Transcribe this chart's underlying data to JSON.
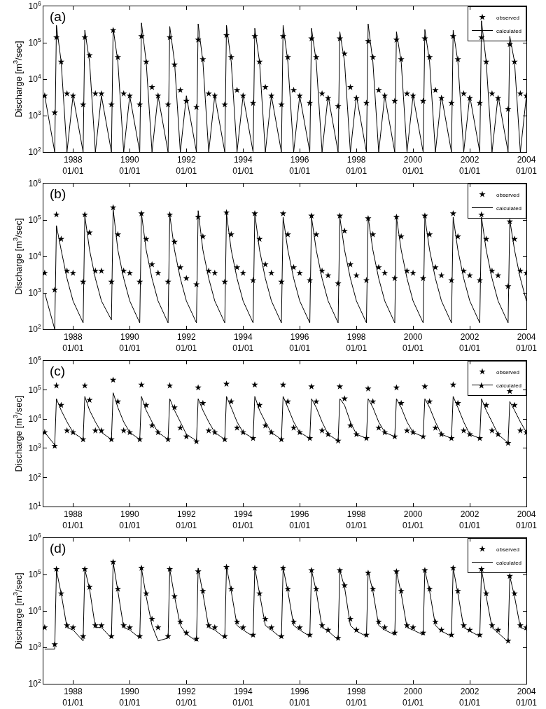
{
  "chart_data": [
    {
      "type": "line",
      "annotations": [
        "(a)"
      ],
      "ylabel": "Discharge [m$^{3}$/sec]",
      "log": "y",
      "grid": false,
      "legend": "top right",
      "xlim": [
        "1986-12-15",
        "2004-01-01"
      ],
      "xticks": [
        {
          "value": "1988-01-01",
          "label": "1988\n01/01"
        },
        {
          "value": "1990-01-01",
          "label": "1990\n01/01"
        },
        {
          "value": "1992-01-01",
          "label": "1992\n01/01"
        },
        {
          "value": "1994-01-01",
          "label": "1994\n01/01"
        },
        {
          "value": "1996-01-01",
          "label": "1996\n01/01"
        },
        {
          "value": "1998-01-01",
          "label": "1998\n01/01"
        },
        {
          "value": "2000-01-01",
          "label": "2000\n01/01"
        },
        {
          "value": "2002-01-01",
          "label": "2002\n01/01"
        },
        {
          "value": "2004-01-01",
          "label": "2004\n01/01"
        }
      ],
      "ylim": [
        100,
        1000000
      ],
      "yticks": [
        {
          "value": 100,
          "label": "10$^{2}$"
        },
        {
          "value": 1000,
          "label": "10$^{3}$"
        },
        {
          "value": 10000,
          "label": "10$^{4}$"
        },
        {
          "value": 100000,
          "label": "10$^{5}$"
        },
        {
          "value": 1000000,
          "label": "10$^{6}$"
        }
      ],
      "x": [
        "1987-01-01",
        "1987-05-10",
        "1987-06-01",
        "1987-08-01",
        "1987-10-15",
        "1988-01-01",
        "1988-05-10",
        "1988-06-01",
        "1988-08-01",
        "1988-10-15",
        "1989-01-01",
        "1989-05-10",
        "1989-06-01",
        "1989-08-01",
        "1989-10-15",
        "1990-01-01",
        "1990-05-10",
        "1990-06-01",
        "1990-08-01",
        "1990-10-15",
        "1991-01-01",
        "1991-05-10",
        "1991-06-01",
        "1991-08-01",
        "1991-10-15",
        "1992-01-01",
        "1992-05-10",
        "1992-06-01",
        "1992-08-01",
        "1992-10-15",
        "1993-01-01",
        "1993-05-10",
        "1993-06-01",
        "1993-08-01",
        "1993-10-15",
        "1994-01-01",
        "1994-05-10",
        "1994-06-01",
        "1994-08-01",
        "1994-10-15",
        "1995-01-01",
        "1995-05-10",
        "1995-06-01",
        "1995-08-01",
        "1995-10-15",
        "1996-01-01",
        "1996-05-10",
        "1996-06-01",
        "1996-08-01",
        "1996-10-15",
        "1997-01-01",
        "1997-05-10",
        "1997-06-01",
        "1997-08-01",
        "1997-10-15",
        "1998-01-01",
        "1998-05-10",
        "1998-06-01",
        "1998-08-01",
        "1998-10-15",
        "1999-01-01",
        "1999-05-10",
        "1999-06-01",
        "1999-08-01",
        "1999-10-15",
        "2000-01-01",
        "2000-05-10",
        "2000-06-01",
        "2000-08-01",
        "2000-10-15",
        "2001-01-01",
        "2001-05-10",
        "2001-06-01",
        "2001-08-01",
        "2001-10-15",
        "2002-01-01",
        "2002-05-10",
        "2002-06-01",
        "2002-08-01",
        "2002-10-15",
        "2003-01-01",
        "2003-05-10",
        "2003-06-01",
        "2003-08-01",
        "2003-10-15",
        "2004-01-01"
      ],
      "series": [
        {
          "name": "observed",
          "type": "scatter",
          "marker": "star",
          "color": "#000000",
          "values": [
            3500,
            1200,
            140000,
            30000,
            4000,
            3500,
            2000,
            140000,
            45000,
            4000,
            4000,
            2000,
            220000,
            40000,
            4000,
            3500,
            2000,
            150000,
            30000,
            6000,
            3500,
            2000,
            140000,
            25000,
            5000,
            2500,
            1700,
            120000,
            35000,
            4000,
            3500,
            2000,
            160000,
            40000,
            5000,
            3500,
            2200,
            150000,
            30000,
            6000,
            3500,
            2000,
            150000,
            40000,
            5000,
            3500,
            2200,
            130000,
            40000,
            4000,
            3000,
            1800,
            130000,
            50000,
            6000,
            3000,
            2200,
            110000,
            40000,
            5000,
            3500,
            2500,
            120000,
            35000,
            4000,
            3500,
            2500,
            130000,
            40000,
            5000,
            3000,
            2200,
            150000,
            35000,
            4000,
            3000,
            2200,
            140000,
            30000,
            4000,
            3000,
            1500,
            90000,
            30000,
            4000,
            3500
          ]
        },
        {
          "name": "calculated",
          "type": "line",
          "marker": "none",
          "line_style": "solid",
          "color": "#000000",
          "values": [
            3500,
            100,
            300000,
            30000,
            100,
            3500,
            100,
            220000,
            30000,
            100,
            3500,
            100,
            250000,
            30000,
            100,
            3500,
            100,
            350000,
            30000,
            100,
            3500,
            100,
            280000,
            30000,
            100,
            3500,
            100,
            330000,
            30000,
            100,
            3500,
            100,
            300000,
            30000,
            100,
            3500,
            100,
            250000,
            30000,
            100,
            3500,
            100,
            300000,
            30000,
            100,
            3500,
            100,
            250000,
            30000,
            100,
            3500,
            100,
            200000,
            30000,
            100,
            3500,
            100,
            330000,
            30000,
            100,
            3500,
            100,
            200000,
            30000,
            100,
            3500,
            100,
            230000,
            30000,
            100,
            3500,
            100,
            220000,
            30000,
            100,
            3500,
            100,
            400000,
            30000,
            100,
            3500,
            100,
            150000,
            30000,
            100,
            3500
          ]
        }
      ]
    },
    {
      "type": "line",
      "annotations": [
        "(b)"
      ],
      "ylabel": "Discharge [m$^{3}$/sec]",
      "log": "y",
      "grid": false,
      "legend": "top right",
      "xlim": [
        "1986-12-15",
        "2004-01-01"
      ],
      "xticks": [
        {
          "value": "1988-01-01",
          "label": "1988\n01/01"
        },
        {
          "value": "1990-01-01",
          "label": "1990\n01/01"
        },
        {
          "value": "1992-01-01",
          "label": "1992\n01/01"
        },
        {
          "value": "1994-01-01",
          "label": "1994\n01/01"
        },
        {
          "value": "1996-01-01",
          "label": "1996\n01/01"
        },
        {
          "value": "1998-01-01",
          "label": "1998\n01/01"
        },
        {
          "value": "2000-01-01",
          "label": "2000\n01/01"
        },
        {
          "value": "2002-01-01",
          "label": "2002\n01/01"
        },
        {
          "value": "2004-01-01",
          "label": "2004\n01/01"
        }
      ],
      "ylim": [
        100,
        1000000
      ],
      "yticks": [
        {
          "value": 100,
          "label": "10$^{2}$"
        },
        {
          "value": 1000,
          "label": "10$^{3}$"
        },
        {
          "value": 10000,
          "label": "10$^{4}$"
        },
        {
          "value": 100000,
          "label": "10$^{5}$"
        },
        {
          "value": 1000000,
          "label": "10$^{6}$"
        }
      ],
      "x": [
        "1987-01-01",
        "1987-05-10",
        "1987-06-01",
        "1987-08-01",
        "1987-10-15",
        "1988-01-01",
        "1988-05-10",
        "1988-06-01",
        "1988-08-01",
        "1988-10-15",
        "1989-01-01",
        "1989-05-10",
        "1989-06-01",
        "1989-08-01",
        "1989-10-15",
        "1990-01-01",
        "1990-05-10",
        "1990-06-01",
        "1990-08-01",
        "1990-10-15",
        "1991-01-01",
        "1991-05-10",
        "1991-06-01",
        "1991-08-01",
        "1991-10-15",
        "1992-01-01",
        "1992-05-10",
        "1992-06-01",
        "1992-08-01",
        "1992-10-15",
        "1993-01-01",
        "1993-05-10",
        "1993-06-01",
        "1993-08-01",
        "1993-10-15",
        "1994-01-01",
        "1994-05-10",
        "1994-06-01",
        "1994-08-01",
        "1994-10-15",
        "1995-01-01",
        "1995-05-10",
        "1995-06-01",
        "1995-08-01",
        "1995-10-15",
        "1996-01-01",
        "1996-05-10",
        "1996-06-01",
        "1996-08-01",
        "1996-10-15",
        "1997-01-01",
        "1997-05-10",
        "1997-06-01",
        "1997-08-01",
        "1997-10-15",
        "1998-01-01",
        "1998-05-10",
        "1998-06-01",
        "1998-08-01",
        "1998-10-15",
        "1999-01-01",
        "1999-05-10",
        "1999-06-01",
        "1999-08-01",
        "1999-10-15",
        "2000-01-01",
        "2000-05-10",
        "2000-06-01",
        "2000-08-01",
        "2000-10-15",
        "2001-01-01",
        "2001-05-10",
        "2001-06-01",
        "2001-08-01",
        "2001-10-15",
        "2002-01-01",
        "2002-05-10",
        "2002-06-01",
        "2002-08-01",
        "2002-10-15",
        "2003-01-01",
        "2003-05-10",
        "2003-06-01",
        "2003-08-01",
        "2003-10-15",
        "2004-01-01"
      ],
      "series": [
        {
          "name": "observed",
          "type": "scatter",
          "marker": "star",
          "color": "#000000",
          "values": [
            3500,
            1200,
            140000,
            30000,
            4000,
            3500,
            2000,
            140000,
            45000,
            4000,
            4000,
            2000,
            220000,
            40000,
            4000,
            3500,
            2000,
            150000,
            30000,
            6000,
            3500,
            2000,
            140000,
            25000,
            5000,
            2500,
            1700,
            120000,
            35000,
            4000,
            3500,
            2000,
            160000,
            40000,
            5000,
            3500,
            2200,
            150000,
            30000,
            6000,
            3500,
            2000,
            150000,
            40000,
            5000,
            3500,
            2200,
            130000,
            40000,
            4000,
            3000,
            1800,
            130000,
            50000,
            6000,
            3000,
            2200,
            110000,
            40000,
            5000,
            3500,
            2500,
            120000,
            35000,
            4000,
            3500,
            2500,
            130000,
            40000,
            5000,
            3000,
            2200,
            150000,
            35000,
            4000,
            3000,
            2200,
            140000,
            30000,
            4000,
            3000,
            1500,
            90000,
            30000,
            4000,
            3500
          ]
        },
        {
          "name": "calculated",
          "type": "line",
          "marker": "none",
          "line_style": "solid",
          "color": "#000000",
          "values": [
            1000,
            100,
            70000,
            15000,
            2500,
            600,
            150,
            130000,
            15000,
            2500,
            600,
            180,
            200000,
            15000,
            2500,
            600,
            150,
            150000,
            15000,
            2500,
            600,
            150,
            140000,
            15000,
            2500,
            600,
            150,
            180000,
            15000,
            2500,
            600,
            150,
            150000,
            15000,
            2500,
            600,
            150,
            150000,
            15000,
            2500,
            600,
            150,
            120000,
            15000,
            2500,
            600,
            150,
            120000,
            15000,
            2500,
            600,
            150,
            120000,
            15000,
            2500,
            600,
            150,
            120000,
            15000,
            2500,
            600,
            150,
            120000,
            15000,
            2500,
            600,
            150,
            120000,
            15000,
            2500,
            600,
            150,
            120000,
            15000,
            2500,
            600,
            150,
            120000,
            15000,
            2500,
            600,
            150,
            100000,
            15000,
            2500,
            600
          ]
        }
      ]
    },
    {
      "type": "line",
      "annotations": [
        "(c)"
      ],
      "ylabel": "Discharge [m$^{3}$/sec]",
      "log": "y",
      "grid": false,
      "legend": "top right",
      "xlim": [
        "1986-12-15",
        "2004-01-01"
      ],
      "xticks": [
        {
          "value": "1988-01-01",
          "label": "1988\n01/01"
        },
        {
          "value": "1990-01-01",
          "label": "1990\n01/01"
        },
        {
          "value": "1992-01-01",
          "label": "1992\n01/01"
        },
        {
          "value": "1994-01-01",
          "label": "1994\n01/01"
        },
        {
          "value": "1996-01-01",
          "label": "1996\n01/01"
        },
        {
          "value": "1998-01-01",
          "label": "1998\n01/01"
        },
        {
          "value": "2000-01-01",
          "label": "2000\n01/01"
        },
        {
          "value": "2002-01-01",
          "label": "2002\n01/01"
        },
        {
          "value": "2004-01-01",
          "label": "2004\n01/01"
        }
      ],
      "ylim": [
        10,
        1000000
      ],
      "yticks": [
        {
          "value": 10,
          "label": "10$^{1}$"
        },
        {
          "value": 100,
          "label": "10$^{2}$"
        },
        {
          "value": 1000,
          "label": "10$^{3}$"
        },
        {
          "value": 10000,
          "label": "10$^{4}$"
        },
        {
          "value": 100000,
          "label": "10$^{5}$"
        },
        {
          "value": 1000000,
          "label": "10$^{6}$"
        }
      ],
      "x": [
        "1987-01-01",
        "1987-05-10",
        "1987-06-01",
        "1987-08-01",
        "1987-10-15",
        "1988-01-01",
        "1988-05-10",
        "1988-06-01",
        "1988-08-01",
        "1988-10-15",
        "1989-01-01",
        "1989-05-10",
        "1989-06-01",
        "1989-08-01",
        "1989-10-15",
        "1990-01-01",
        "1990-05-10",
        "1990-06-01",
        "1990-08-01",
        "1990-10-15",
        "1991-01-01",
        "1991-05-10",
        "1991-06-01",
        "1991-08-01",
        "1991-10-15",
        "1992-01-01",
        "1992-05-10",
        "1992-06-01",
        "1992-08-01",
        "1992-10-15",
        "1993-01-01",
        "1993-05-10",
        "1993-06-01",
        "1993-08-01",
        "1993-10-15",
        "1994-01-01",
        "1994-05-10",
        "1994-06-01",
        "1994-08-01",
        "1994-10-15",
        "1995-01-01",
        "1995-05-10",
        "1995-06-01",
        "1995-08-01",
        "1995-10-15",
        "1996-01-01",
        "1996-05-10",
        "1996-06-01",
        "1996-08-01",
        "1996-10-15",
        "1997-01-01",
        "1997-05-10",
        "1997-06-01",
        "1997-08-01",
        "1997-10-15",
        "1998-01-01",
        "1998-05-10",
        "1998-06-01",
        "1998-08-01",
        "1998-10-15",
        "1999-01-01",
        "1999-05-10",
        "1999-06-01",
        "1999-08-01",
        "1999-10-15",
        "2000-01-01",
        "2000-05-10",
        "2000-06-01",
        "2000-08-01",
        "2000-10-15",
        "2001-01-01",
        "2001-05-10",
        "2001-06-01",
        "2001-08-01",
        "2001-10-15",
        "2002-01-01",
        "2002-05-10",
        "2002-06-01",
        "2002-08-01",
        "2002-10-15",
        "2003-01-01",
        "2003-05-10",
        "2003-06-01",
        "2003-08-01",
        "2003-10-15",
        "2004-01-01"
      ],
      "series": [
        {
          "name": "observed",
          "type": "scatter",
          "marker": "star",
          "color": "#000000",
          "values": [
            3500,
            1200,
            140000,
            30000,
            4000,
            3500,
            2000,
            140000,
            45000,
            4000,
            4000,
            2000,
            220000,
            40000,
            4000,
            3500,
            2000,
            150000,
            30000,
            6000,
            3500,
            2000,
            140000,
            25000,
            5000,
            2500,
            1700,
            120000,
            35000,
            4000,
            3500,
            2000,
            160000,
            40000,
            5000,
            3500,
            2200,
            150000,
            30000,
            6000,
            3500,
            2000,
            150000,
            40000,
            5000,
            3500,
            2200,
            130000,
            40000,
            4000,
            3000,
            1800,
            130000,
            50000,
            6000,
            3000,
            2200,
            110000,
            40000,
            5000,
            3500,
            2500,
            120000,
            35000,
            4000,
            3500,
            2500,
            130000,
            40000,
            5000,
            3000,
            2200,
            150000,
            35000,
            4000,
            3000,
            2200,
            140000,
            30000,
            4000,
            3000,
            1500,
            90000,
            30000,
            4000,
            3500
          ]
        },
        {
          "name": "calculated",
          "type": "line",
          "marker": "none",
          "line_style": "solid",
          "color": "#000000",
          "values": [
            3500,
            1300,
            50000,
            20000,
            8000,
            3500,
            2000,
            60000,
            20000,
            8000,
            3500,
            2000,
            80000,
            25000,
            8000,
            3500,
            2000,
            60000,
            20000,
            8000,
            3500,
            2000,
            50000,
            20000,
            8000,
            3000,
            1800,
            50000,
            20000,
            8000,
            3500,
            2000,
            60000,
            25000,
            8000,
            3500,
            2200,
            60000,
            20000,
            8000,
            3500,
            2000,
            60000,
            25000,
            8000,
            3500,
            2200,
            50000,
            25000,
            8000,
            3000,
            1800,
            50000,
            30000,
            8000,
            3000,
            2200,
            50000,
            25000,
            8000,
            3500,
            2500,
            50000,
            25000,
            8000,
            3500,
            2500,
            50000,
            25000,
            8000,
            3000,
            2200,
            60000,
            25000,
            8000,
            3000,
            2200,
            50000,
            20000,
            8000,
            3000,
            1500,
            40000,
            20000,
            8000,
            3500
          ]
        }
      ]
    },
    {
      "type": "line",
      "annotations": [
        "(d)"
      ],
      "ylabel": "Discharge [m$^{3}$/sec]",
      "log": "y",
      "grid": false,
      "legend": "top right",
      "xlim": [
        "1986-12-15",
        "2004-01-01"
      ],
      "xticks": [
        {
          "value": "1988-01-01",
          "label": "1988\n01/01"
        },
        {
          "value": "1990-01-01",
          "label": "1990\n01/01"
        },
        {
          "value": "1992-01-01",
          "label": "1992\n01/01"
        },
        {
          "value": "1994-01-01",
          "label": "1994\n01/01"
        },
        {
          "value": "1996-01-01",
          "label": "1996\n01/01"
        },
        {
          "value": "1998-01-01",
          "label": "1998\n01/01"
        },
        {
          "value": "2000-01-01",
          "label": "2000\n01/01"
        },
        {
          "value": "2002-01-01",
          "label": "2002\n01/01"
        },
        {
          "value": "2004-01-01",
          "label": "2004\n01/01"
        }
      ],
      "ylim": [
        100,
        1000000
      ],
      "yticks": [
        {
          "value": 100,
          "label": "10$^{2}$"
        },
        {
          "value": 1000,
          "label": "10$^{3}$"
        },
        {
          "value": 10000,
          "label": "10$^{4}$"
        },
        {
          "value": 100000,
          "label": "10$^{5}$"
        },
        {
          "value": 1000000,
          "label": "10$^{6}$"
        }
      ],
      "x": [
        "1987-01-01",
        "1987-05-10",
        "1987-06-01",
        "1987-08-01",
        "1987-10-15",
        "1988-01-01",
        "1988-05-10",
        "1988-06-01",
        "1988-08-01",
        "1988-10-15",
        "1989-01-01",
        "1989-05-10",
        "1989-06-01",
        "1989-08-01",
        "1989-10-15",
        "1990-01-01",
        "1990-05-10",
        "1990-06-01",
        "1990-08-01",
        "1990-10-15",
        "1991-01-01",
        "1991-05-10",
        "1991-06-01",
        "1991-08-01",
        "1991-10-15",
        "1992-01-01",
        "1992-05-10",
        "1992-06-01",
        "1992-08-01",
        "1992-10-15",
        "1993-01-01",
        "1993-05-10",
        "1993-06-01",
        "1993-08-01",
        "1993-10-15",
        "1994-01-01",
        "1994-05-10",
        "1994-06-01",
        "1994-08-01",
        "1994-10-15",
        "1995-01-01",
        "1995-05-10",
        "1995-06-01",
        "1995-08-01",
        "1995-10-15",
        "1996-01-01",
        "1996-05-10",
        "1996-06-01",
        "1996-08-01",
        "1996-10-15",
        "1997-01-01",
        "1997-05-10",
        "1997-06-01",
        "1997-08-01",
        "1997-10-15",
        "1998-01-01",
        "1998-05-10",
        "1998-06-01",
        "1998-08-01",
        "1998-10-15",
        "1999-01-01",
        "1999-05-10",
        "1999-06-01",
        "1999-08-01",
        "1999-10-15",
        "2000-01-01",
        "2000-05-10",
        "2000-06-01",
        "2000-08-01",
        "2000-10-15",
        "2001-01-01",
        "2001-05-10",
        "2001-06-01",
        "2001-08-01",
        "2001-10-15",
        "2002-01-01",
        "2002-05-10",
        "2002-06-01",
        "2002-08-01",
        "2002-10-15",
        "2003-01-01",
        "2003-05-10",
        "2003-06-01",
        "2003-08-01",
        "2003-10-15",
        "2004-01-01"
      ],
      "series": [
        {
          "name": "observed",
          "type": "scatter",
          "marker": "star",
          "color": "#000000",
          "values": [
            3500,
            1200,
            140000,
            30000,
            4000,
            3500,
            2000,
            140000,
            45000,
            4000,
            4000,
            2000,
            220000,
            40000,
            4000,
            3500,
            2000,
            150000,
            30000,
            6000,
            3500,
            2000,
            140000,
            25000,
            5000,
            2500,
            1700,
            120000,
            35000,
            4000,
            3500,
            2000,
            160000,
            40000,
            5000,
            3500,
            2200,
            150000,
            30000,
            6000,
            3500,
            2000,
            150000,
            40000,
            5000,
            3500,
            2200,
            130000,
            40000,
            4000,
            3000,
            1800,
            130000,
            50000,
            6000,
            3000,
            2200,
            110000,
            40000,
            5000,
            3500,
            2500,
            120000,
            35000,
            4000,
            3500,
            2500,
            130000,
            40000,
            5000,
            3000,
            2200,
            150000,
            35000,
            4000,
            3000,
            2200,
            140000,
            30000,
            4000,
            3000,
            1500,
            90000,
            30000,
            4000,
            3500
          ]
        },
        {
          "name": "calculated",
          "type": "line",
          "marker": "none",
          "line_style": "solid",
          "color": "#000000",
          "values": [
            900,
            900,
            130000,
            30000,
            3500,
            3000,
            1500,
            140000,
            40000,
            3500,
            3500,
            1800,
            220000,
            35000,
            3500,
            3000,
            1800,
            150000,
            25000,
            4000,
            1500,
            1800,
            140000,
            25000,
            4000,
            2300,
            1500,
            150000,
            30000,
            3500,
            3000,
            1800,
            160000,
            35000,
            4000,
            3000,
            2000,
            150000,
            30000,
            4000,
            3000,
            1800,
            150000,
            35000,
            4000,
            3000,
            2000,
            130000,
            35000,
            3500,
            2800,
            1600,
            130000,
            45000,
            4000,
            2800,
            2000,
            120000,
            35000,
            4000,
            3000,
            2200,
            120000,
            30000,
            3500,
            3000,
            2200,
            130000,
            35000,
            4000,
            2800,
            2000,
            150000,
            30000,
            3500,
            2800,
            2000,
            140000,
            25000,
            3500,
            2500,
            1400,
            90000,
            25000,
            3500,
            3000
          ]
        }
      ]
    }
  ]
}
